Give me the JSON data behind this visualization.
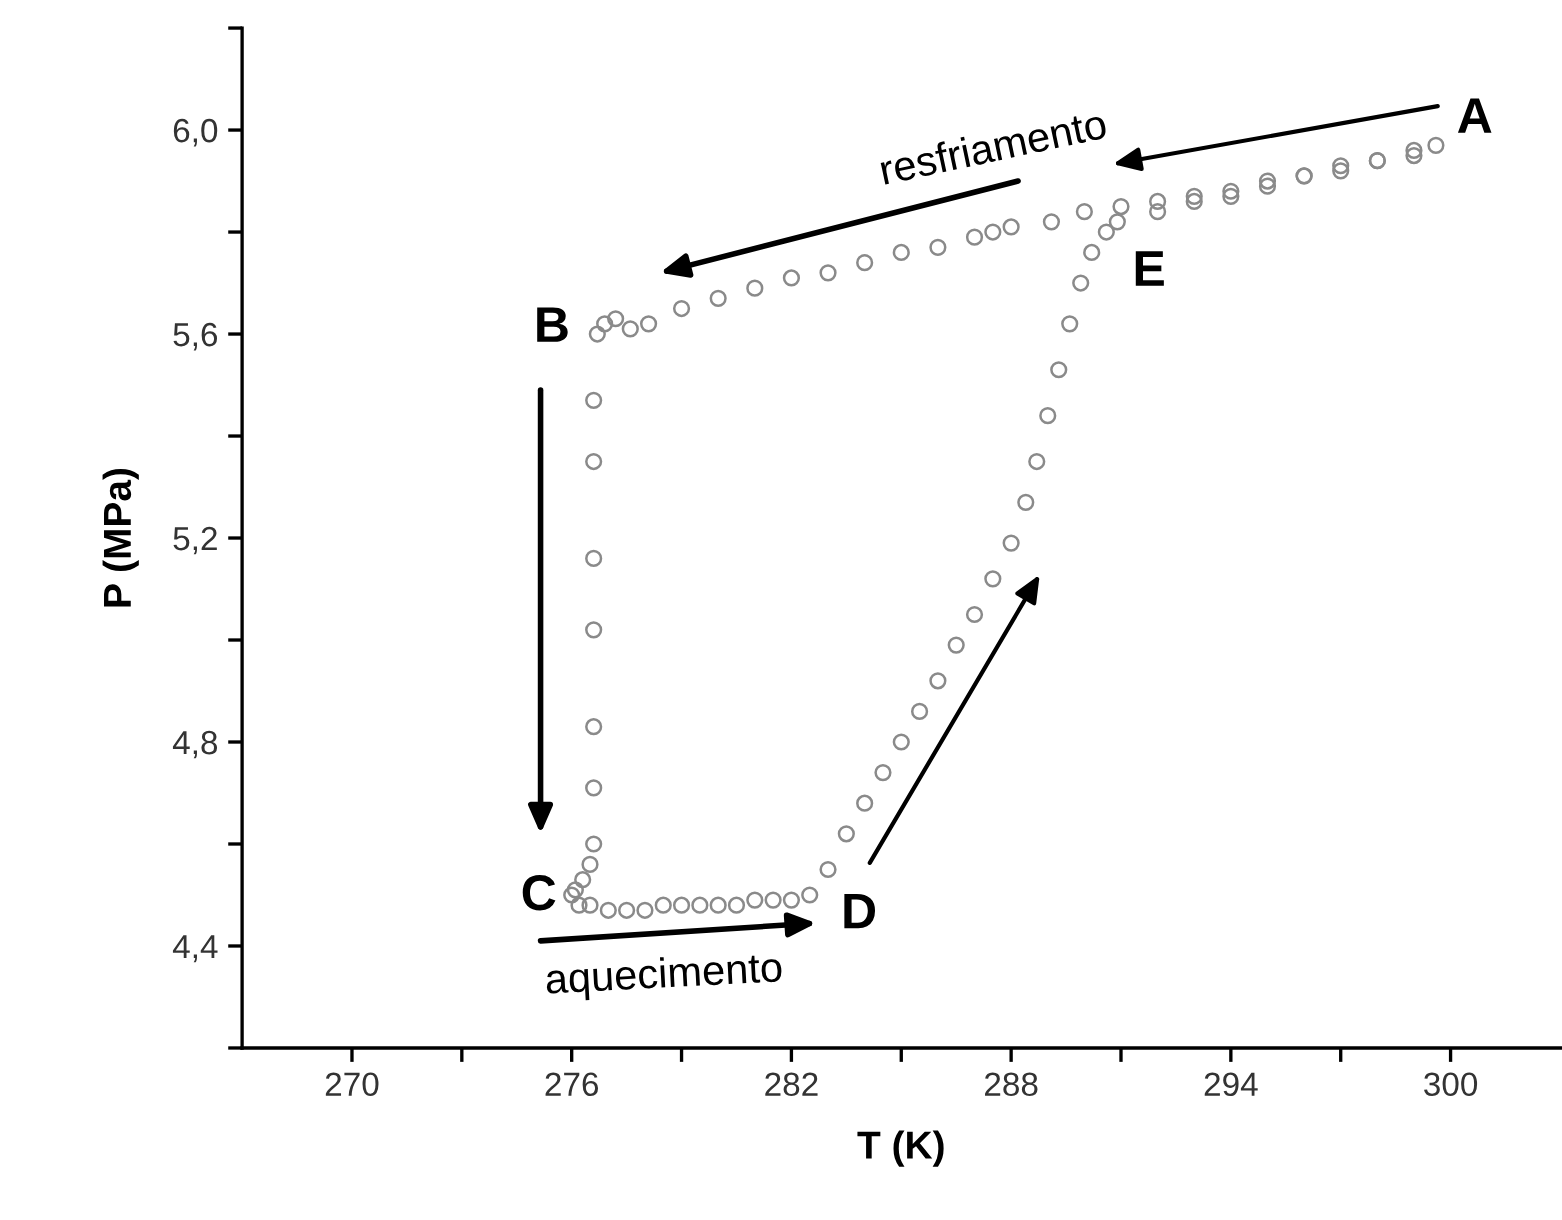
{
  "chart_data": {
    "type": "scatter",
    "xlabel": "T (K)",
    "ylabel": "P (MPa)",
    "xlim": [
      267,
      303
    ],
    "ylim": [
      4.2,
      6.2
    ],
    "xticks": [
      270,
      {
        "value": 273,
        "label": null
      },
      276,
      {
        "value": 279,
        "label": null
      },
      282,
      {
        "value": 285,
        "label": null
      },
      288,
      {
        "value": 291,
        "label": null
      },
      294,
      {
        "value": 297,
        "label": null
      },
      300
    ],
    "yticks": [
      {
        "value": 4.2,
        "label": null
      },
      {
        "value": 4.4,
        "label": "4,4"
      },
      {
        "value": 4.6,
        "label": null
      },
      {
        "value": 4.8,
        "label": "4,8"
      },
      {
        "value": 5.0,
        "label": null
      },
      {
        "value": 5.2,
        "label": "5,2"
      },
      {
        "value": 5.4,
        "label": null
      },
      {
        "value": 5.6,
        "label": "5,6"
      },
      {
        "value": 5.8,
        "label": null
      },
      {
        "value": 6.0,
        "label": "6,0"
      },
      {
        "value": 6.2,
        "label": null
      }
    ],
    "grid": false,
    "marker": "circle",
    "series": [
      {
        "color": "#8a8a8a",
        "x": [
          299.6,
          299,
          298,
          297,
          296,
          295,
          294,
          293,
          292,
          291,
          290,
          289.1,
          288,
          287.5,
          287,
          286,
          285,
          284,
          283,
          282,
          281,
          280,
          279,
          278.1,
          277.6,
          277.2,
          276.9,
          276.7,
          276.6,
          276.6,
          276.6,
          276.6,
          276.6,
          276.6,
          276.6,
          276.5,
          276.3,
          276.1,
          276.0,
          276.2,
          276.5,
          277,
          277.5,
          278,
          278.5,
          279,
          279.5,
          280,
          280.5,
          281,
          281.5,
          282,
          282.5,
          283,
          283.5,
          284,
          284.5,
          285,
          285.5,
          286,
          286.5,
          287,
          287.5,
          288.0,
          288.4,
          288.7,
          289,
          289.3,
          289.6,
          289.9,
          290.2,
          290.6,
          290.9,
          292,
          293,
          294,
          295,
          296,
          297,
          298,
          299
        ],
        "values": [
          5.97,
          5.96,
          5.94,
          5.93,
          5.91,
          5.9,
          5.88,
          5.87,
          5.86,
          5.85,
          5.84,
          5.82,
          5.81,
          5.8,
          5.79,
          5.77,
          5.76,
          5.74,
          5.72,
          5.71,
          5.69,
          5.67,
          5.65,
          5.62,
          5.61,
          5.63,
          5.62,
          5.6,
          5.47,
          5.35,
          5.16,
          5.02,
          4.83,
          4.71,
          4.6,
          4.56,
          4.53,
          4.51,
          4.5,
          4.48,
          4.48,
          4.47,
          4.47,
          4.47,
          4.48,
          4.48,
          4.48,
          4.48,
          4.48,
          4.49,
          4.49,
          4.49,
          4.5,
          4.55,
          4.62,
          4.68,
          4.74,
          4.8,
          4.86,
          4.92,
          4.99,
          5.05,
          5.12,
          5.19,
          5.27,
          5.35,
          5.44,
          5.53,
          5.62,
          5.7,
          5.76,
          5.8,
          5.82,
          5.84,
          5.86,
          5.87,
          5.89,
          5.91,
          5.92,
          5.94,
          5.95
        ]
      }
    ],
    "annotations": [
      "A",
      "B",
      "C",
      "D",
      "E",
      "resfriamento",
      "aquecimento"
    ]
  }
}
